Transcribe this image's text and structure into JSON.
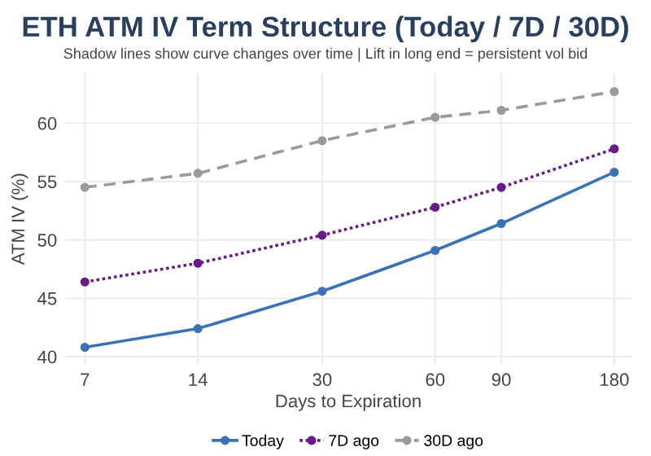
{
  "chart_data": {
    "type": "line",
    "title": "ETH ATM IV Term Structure (Today / 7D / 30D)",
    "subtitle": "Shadow lines show curve changes over time | Lift in long end = persistent vol bid",
    "xlabel": "Days to Expiration",
    "ylabel": "ATM IV (%)",
    "x": [
      7,
      14,
      30,
      60,
      90,
      180
    ],
    "series": [
      {
        "name": "Today",
        "color": "#3a72b8",
        "line_style": "solid",
        "values": [
          40.8,
          42.4,
          45.6,
          49.1,
          51.4,
          55.8
        ]
      },
      {
        "name": "7D ago",
        "color": "#6a1b8a",
        "line_style": "dotted",
        "values": [
          46.4,
          48.0,
          50.4,
          52.8,
          54.5,
          57.8
        ]
      },
      {
        "name": "30D ago",
        "color": "#9a9a9a",
        "line_style": "dashed",
        "values": [
          54.5,
          55.7,
          58.5,
          60.5,
          61.1,
          62.7
        ]
      }
    ],
    "log": "x",
    "xlim": [
      6.2,
      200
    ],
    "xticks": [
      7,
      14,
      30,
      60,
      90,
      180
    ],
    "ylim": [
      39.3,
      64.3
    ],
    "yticks": [
      40,
      45,
      50,
      55,
      60
    ],
    "grid": true,
    "legend": "bottom",
    "marker": "circle"
  }
}
